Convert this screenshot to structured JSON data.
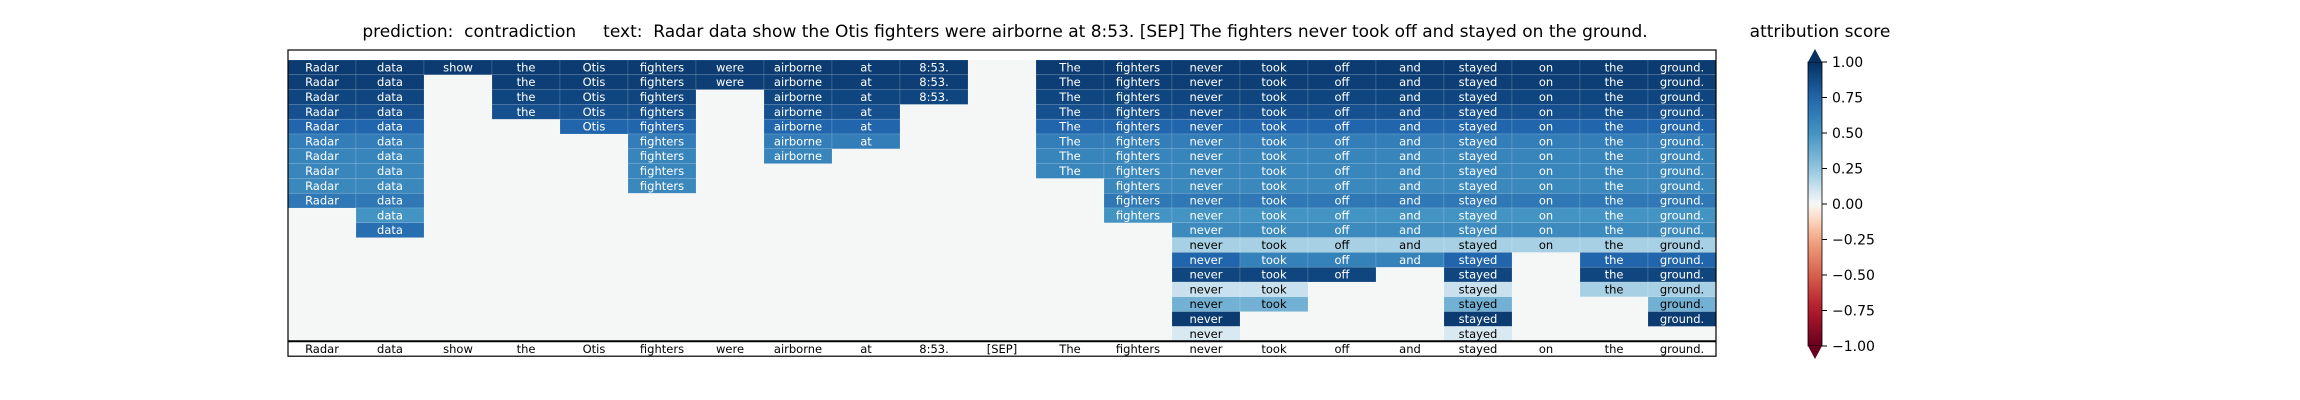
{
  "title": "prediction:  contradiction     text:  Radar data show the Otis fighters were airborne at 8:53. [SEP] The fighters never took off and stayed on the ground.",
  "chart_data": {
    "type": "heatmap",
    "title": "prediction:  contradiction     text:  Radar data show the Otis fighters were airborne at 8:53. [SEP] The fighters never took off and stayed on the ground.",
    "colorbar_label": "attribution score",
    "colorbar_range": [
      -1.0,
      1.0
    ],
    "colorbar_ticks": [
      "1.00",
      "0.75",
      "0.50",
      "0.25",
      "0.00",
      "−0.25",
      "−0.50",
      "−0.75",
      "−1.00"
    ],
    "colormap": "RdBu",
    "tokens": [
      "Radar",
      "data",
      "show",
      "the",
      "Otis",
      "fighters",
      "were",
      "airborne",
      "at",
      "8:53.",
      "[SEP]",
      "The",
      "fighters",
      "never",
      "took",
      "off",
      "and",
      "stayed",
      "on",
      "the",
      "ground."
    ],
    "rows": [
      [
        0.95,
        0.95,
        0.95,
        0.95,
        0.95,
        0.95,
        0.95,
        0.95,
        0.95,
        0.95,
        null,
        0.95,
        0.95,
        0.95,
        0.95,
        0.95,
        0.95,
        0.95,
        0.95,
        0.95,
        0.95
      ],
      [
        0.93,
        0.93,
        null,
        0.93,
        0.93,
        0.93,
        0.93,
        0.93,
        0.93,
        0.93,
        null,
        0.93,
        0.93,
        0.93,
        0.93,
        0.93,
        0.93,
        0.93,
        0.93,
        0.93,
        0.93
      ],
      [
        0.9,
        0.9,
        null,
        0.9,
        0.9,
        0.9,
        null,
        0.9,
        0.9,
        0.9,
        null,
        0.9,
        0.9,
        0.9,
        0.9,
        0.9,
        0.9,
        0.9,
        0.9,
        0.9,
        0.9
      ],
      [
        0.85,
        0.85,
        null,
        0.85,
        0.85,
        0.85,
        null,
        0.85,
        0.85,
        null,
        null,
        0.85,
        0.85,
        0.85,
        0.85,
        0.85,
        0.85,
        0.85,
        0.85,
        0.85,
        0.85
      ],
      [
        0.75,
        0.75,
        null,
        null,
        0.75,
        0.75,
        null,
        0.75,
        0.75,
        null,
        null,
        0.75,
        0.75,
        0.75,
        0.75,
        0.75,
        0.75,
        0.75,
        0.75,
        0.75,
        0.75
      ],
      [
        0.62,
        0.62,
        null,
        null,
        null,
        0.62,
        null,
        0.62,
        0.62,
        null,
        null,
        0.62,
        0.62,
        0.62,
        0.62,
        0.62,
        0.62,
        0.62,
        0.62,
        0.62,
        0.62
      ],
      [
        0.58,
        0.58,
        null,
        null,
        null,
        0.58,
        null,
        0.58,
        null,
        null,
        null,
        0.58,
        0.58,
        0.58,
        0.58,
        0.58,
        0.58,
        0.58,
        0.58,
        0.58,
        0.58
      ],
      [
        0.57,
        0.57,
        null,
        null,
        null,
        0.57,
        null,
        null,
        null,
        null,
        null,
        0.57,
        0.57,
        0.57,
        0.57,
        0.57,
        0.57,
        0.57,
        0.57,
        0.57,
        0.57
      ],
      [
        0.56,
        0.56,
        null,
        null,
        null,
        0.56,
        null,
        null,
        null,
        null,
        null,
        null,
        0.56,
        0.56,
        0.56,
        0.56,
        0.56,
        0.56,
        0.56,
        0.56,
        0.56
      ],
      [
        0.65,
        0.65,
        null,
        null,
        null,
        null,
        null,
        null,
        null,
        null,
        null,
        null,
        0.65,
        0.65,
        0.65,
        0.65,
        0.65,
        0.65,
        0.65,
        0.65,
        0.65
      ],
      [
        null,
        0.5,
        null,
        null,
        null,
        null,
        null,
        null,
        null,
        null,
        null,
        null,
        0.5,
        0.5,
        0.5,
        0.5,
        0.5,
        0.5,
        0.5,
        0.5,
        0.5
      ],
      [
        null,
        0.7,
        null,
        null,
        null,
        null,
        null,
        null,
        null,
        null,
        null,
        null,
        null,
        0.55,
        0.55,
        0.55,
        0.55,
        0.55,
        0.55,
        0.55,
        0.55
      ],
      [
        null,
        null,
        null,
        null,
        null,
        null,
        null,
        null,
        null,
        null,
        null,
        null,
        null,
        0.2,
        0.2,
        0.2,
        0.2,
        0.2,
        0.2,
        0.2,
        0.2
      ],
      [
        null,
        null,
        null,
        null,
        null,
        null,
        null,
        null,
        null,
        null,
        null,
        null,
        null,
        0.75,
        0.6,
        0.6,
        0.6,
        0.75,
        null,
        0.75,
        0.75
      ],
      [
        null,
        null,
        null,
        null,
        null,
        null,
        null,
        null,
        null,
        null,
        null,
        null,
        null,
        0.9,
        0.9,
        0.9,
        null,
        0.9,
        null,
        0.9,
        0.9
      ],
      [
        null,
        null,
        null,
        null,
        null,
        null,
        null,
        null,
        null,
        null,
        null,
        null,
        null,
        0.12,
        0.12,
        null,
        null,
        0.12,
        null,
        0.2,
        0.2
      ],
      [
        null,
        null,
        null,
        null,
        null,
        null,
        null,
        null,
        null,
        null,
        null,
        null,
        null,
        0.35,
        0.35,
        null,
        null,
        0.35,
        null,
        null,
        0.35
      ],
      [
        null,
        null,
        null,
        null,
        null,
        null,
        null,
        null,
        null,
        null,
        null,
        null,
        null,
        0.95,
        null,
        null,
        null,
        0.95,
        null,
        null,
        0.95
      ],
      [
        null,
        null,
        null,
        null,
        null,
        null,
        null,
        null,
        null,
        null,
        null,
        null,
        null,
        0.08,
        null,
        null,
        null,
        0.08,
        null,
        null,
        null
      ]
    ]
  }
}
